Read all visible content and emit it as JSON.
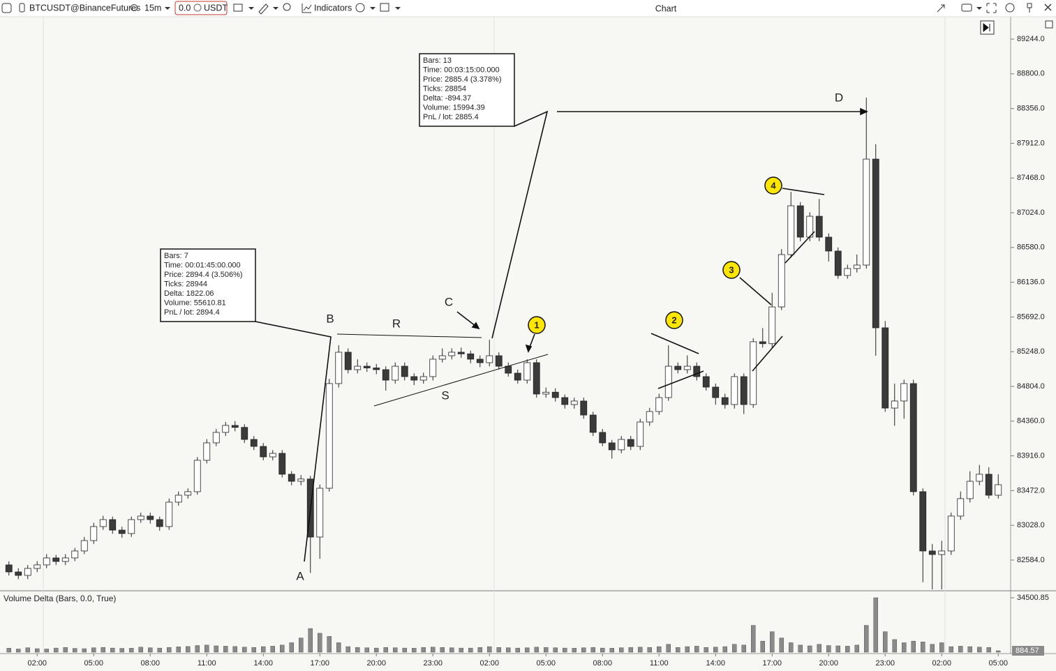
{
  "toolbar": {
    "symbol": "BTCUSDT@BinanceFutures",
    "timeframe": "15m",
    "quantity": "0.0",
    "currency": "USDT",
    "indicators": "Indicators",
    "window_title": "Chart"
  },
  "chart_data": [
    {
      "type": "candlestick",
      "categories": [
        null,
        null,
        null,
        "02:00",
        null,
        null,
        null,
        null,
        null,
        "05:00",
        null,
        null,
        null,
        null,
        null,
        "08:00",
        null,
        null,
        null,
        null,
        null,
        "11:00",
        null,
        null,
        null,
        null,
        null,
        "14:00",
        null,
        null,
        null,
        null,
        null,
        "17:00",
        null,
        null,
        null,
        null,
        null,
        "20:00",
        null,
        null,
        null,
        null,
        null,
        "23:00",
        null,
        null,
        null,
        null,
        null,
        "02:00",
        null,
        null,
        null,
        null,
        null,
        "05:00",
        null,
        null,
        null,
        null,
        null,
        "08:00",
        null,
        null,
        null,
        null,
        null,
        "11:00",
        null,
        null,
        null,
        null,
        null,
        "14:00",
        null,
        null,
        null,
        null,
        null,
        "17:00",
        null,
        null,
        null,
        null,
        null,
        "20:00",
        null,
        null,
        null,
        null,
        null,
        "23:00",
        null,
        null,
        null,
        null,
        null,
        "02:00",
        null,
        null,
        null,
        null,
        null,
        "05:00"
      ],
      "open": [
        82522,
        82432,
        82388,
        82477,
        82522,
        82611,
        82566,
        82611,
        82700,
        82833,
        83012,
        83101,
        82967,
        82923,
        83101,
        83146,
        83101,
        83012,
        83324,
        83413,
        83458,
        83859,
        84082,
        84216,
        84305,
        84280,
        84126,
        84037,
        83903,
        83948,
        83681,
        83591,
        83620,
        82878,
        83502,
        84840,
        85241,
        85018,
        85062,
        85040,
        85018,
        84884,
        85062,
        84929,
        84884,
        84929,
        85152,
        85196,
        85241,
        85220,
        85152,
        85107,
        85196,
        85062,
        84973,
        84884,
        85107,
        84706,
        84730,
        84661,
        84572,
        84617,
        84438,
        84216,
        84082,
        83993,
        84126,
        84037,
        84349,
        84483,
        84661,
        85062,
        85018,
        85062,
        84929,
        84795,
        84661,
        84572,
        84929,
        84572,
        85375,
        85350,
        85820,
        86489,
        87113,
        86712,
        86979,
        86712,
        86534,
        86222,
        86311,
        86355,
        87710,
        85553,
        84527,
        84617,
        84840,
        83458,
        82700,
        82655,
        82700,
        83146,
        83369,
        83591,
        83681,
        83413
      ],
      "high": [
        82567,
        82480,
        82520,
        82570,
        82660,
        82650,
        82660,
        82740,
        82880,
        83060,
        83150,
        83140,
        83010,
        83140,
        83190,
        83190,
        83140,
        83370,
        83460,
        83500,
        83900,
        84130,
        84260,
        84350,
        84360,
        84320,
        84170,
        84080,
        83990,
        83990,
        83720,
        83670,
        83660,
        83550,
        84900,
        85330,
        85290,
        85150,
        85110,
        85090,
        85060,
        85110,
        85110,
        84970,
        84980,
        85200,
        85290,
        85290,
        85300,
        85260,
        85200,
        85400,
        85240,
        85110,
        85020,
        85150,
        85150,
        84790,
        84780,
        84700,
        84660,
        84660,
        84480,
        84260,
        84120,
        84170,
        84170,
        84390,
        84530,
        84710,
        85330,
        85110,
        85200,
        85110,
        84970,
        84840,
        84710,
        84970,
        84970,
        85420,
        85550,
        86000,
        86560,
        87291,
        87160,
        87030,
        87200,
        86760,
        86580,
        86360,
        86490,
        88495,
        87900,
        85640,
        84840,
        84890,
        84890,
        83500,
        82790,
        82830,
        83190,
        83460,
        83720,
        83800,
        83770,
        83680
      ],
      "low": [
        82387,
        82340,
        82340,
        82430,
        82480,
        82520,
        82520,
        82570,
        82660,
        82790,
        82970,
        82920,
        82870,
        82880,
        83060,
        83050,
        82960,
        82970,
        83280,
        83370,
        83420,
        83820,
        84040,
        84170,
        84230,
        84080,
        83990,
        83860,
        83860,
        83640,
        83540,
        83540,
        82420,
        82600,
        83460,
        84790,
        84970,
        84970,
        84990,
        84960,
        84750,
        84840,
        84880,
        84820,
        84840,
        84880,
        85110,
        85150,
        85170,
        85100,
        85050,
        85060,
        85020,
        84930,
        84840,
        84840,
        84660,
        84660,
        84610,
        84520,
        84520,
        84390,
        84170,
        84040,
        83880,
        83950,
        83990,
        83990,
        84300,
        84440,
        84620,
        84970,
        84970,
        84880,
        84750,
        84570,
        84520,
        84520,
        84450,
        84530,
        85300,
        85300,
        85780,
        86450,
        86660,
        86660,
        86660,
        86400,
        86180,
        86180,
        86260,
        86310,
        85196,
        84480,
        84300,
        84390,
        83410,
        82300,
        82209,
        82209,
        82650,
        83100,
        83320,
        83540,
        83370,
        83370
      ],
      "close": [
        82432,
        82388,
        82477,
        82522,
        82611,
        82566,
        82611,
        82700,
        82833,
        83012,
        83101,
        82967,
        82923,
        83101,
        83146,
        83101,
        83012,
        83324,
        83413,
        83458,
        83859,
        84082,
        84216,
        84305,
        84280,
        84126,
        84037,
        83903,
        83948,
        83681,
        83591,
        83620,
        82878,
        83502,
        84840,
        85241,
        85018,
        85062,
        85040,
        85018,
        84884,
        85062,
        84929,
        84884,
        84929,
        85152,
        85196,
        85241,
        85220,
        85152,
        85107,
        85196,
        85062,
        84973,
        84884,
        85107,
        84706,
        84730,
        84661,
        84572,
        84617,
        84438,
        84216,
        84082,
        83993,
        84126,
        84037,
        84349,
        84483,
        84661,
        85062,
        85018,
        85062,
        84929,
        84795,
        84661,
        84572,
        84929,
        84572,
        85375,
        85350,
        85820,
        86489,
        87113,
        86712,
        86979,
        86712,
        86534,
        86222,
        86311,
        86355,
        87710,
        85553,
        84527,
        84617,
        84840,
        83458,
        82700,
        82655,
        82700,
        83146,
        83369,
        83591,
        83681,
        83413,
        83547
      ],
      "up_color": "#ffffff",
      "down_color": "#3b3b3b",
      "ylim": [
        82200,
        89494
      ],
      "yticks": [
        {
          "value": 89244,
          "label": "89244.0"
        },
        {
          "value": 88800,
          "label": "88800.0"
        },
        {
          "value": 88356,
          "label": "88356.0"
        },
        {
          "value": 87912,
          "label": "87912.0"
        },
        {
          "value": 87468,
          "label": "87468.0"
        },
        {
          "value": 87024,
          "label": "87024.0"
        },
        {
          "value": 86580,
          "label": "86580.0"
        },
        {
          "value": 86136,
          "label": "86136.0"
        },
        {
          "value": 85692,
          "label": "85692.0"
        },
        {
          "value": 85248,
          "label": "85248.0"
        },
        {
          "value": 84804,
          "label": "84804.0"
        },
        {
          "value": 84360,
          "label": "84360.0"
        },
        {
          "value": 83916,
          "label": "83916.0"
        },
        {
          "value": 83472,
          "label": "83472.0"
        },
        {
          "value": 83028,
          "label": "83028.0"
        },
        {
          "value": 82584,
          "label": "82584.0"
        }
      ],
      "grid": false,
      "annotations": [
        "A",
        "B",
        "C",
        "D",
        "R",
        "S",
        "1",
        "2",
        "3",
        "4"
      ],
      "measurements": [
        [
          "Bars: 7",
          "Time: 00:01:45:00.000",
          "Price: 2894.4 (3.506%)",
          "Ticks: 28944",
          "Delta: 1822.06",
          "Volume: 55610.81",
          "PnL / lot: 2894.4"
        ],
        [
          "Bars: 13",
          "Time: 00:03:15:00.000",
          "Price: 2885.4 (3.378%)",
          "Ticks: 28854",
          "Delta: -894.37",
          "Volume: 15994.39",
          "PnL / lot: 2885.4"
        ]
      ]
    },
    {
      "type": "bar",
      "title": "Volume Delta (Bars, 0.0, True)",
      "color": "#8a8a8a",
      "values": [
        2500,
        2000,
        2800,
        2200,
        2000,
        2600,
        3000,
        2400,
        2200,
        2800,
        3000,
        2600,
        2400,
        2500,
        3200,
        2800,
        2600,
        3000,
        3400,
        3600,
        4200,
        4500,
        4000,
        3800,
        3600,
        3200,
        3000,
        3500,
        3800,
        4500,
        6000,
        9000,
        15000,
        12000,
        10000,
        6000,
        3500,
        3000,
        2800,
        2600,
        3000,
        2800,
        2600,
        2500,
        3000,
        3200,
        3000,
        2800,
        2600,
        2600,
        3000,
        3500,
        3000,
        2800,
        2600,
        2800,
        3200,
        3000,
        2800,
        2600,
        2500,
        2800,
        3000,
        2600,
        2500,
        2800,
        3000,
        3200,
        3000,
        3500,
        5000,
        3000,
        3500,
        3800,
        3000,
        3200,
        3500,
        5000,
        4500,
        17000,
        7000,
        13000,
        9000,
        6000,
        4500,
        4000,
        5000,
        4200,
        4000,
        3800,
        4500,
        17000,
        34500.85,
        13000,
        8000,
        6000,
        7000,
        6500,
        5000,
        6000,
        3500,
        3800,
        3500,
        3200,
        3000,
        884.57
      ],
      "ylim": [
        0,
        34500.85
      ],
      "yticks": [
        34500.85
      ]
    }
  ]
}
